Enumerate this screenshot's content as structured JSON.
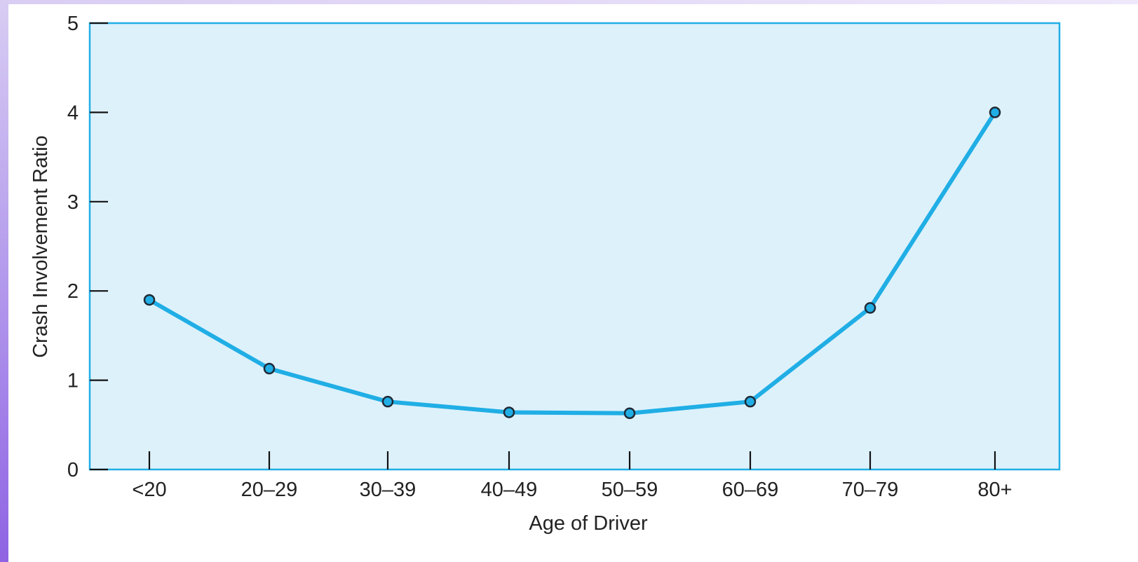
{
  "chart_data": {
    "type": "line",
    "title": "",
    "xlabel": "Age of Driver",
    "ylabel": "Crash Involvement Ratio",
    "categories": [
      "<20",
      "20–29",
      "30–39",
      "40–49",
      "50–59",
      "60–69",
      "70–79",
      "80+"
    ],
    "series": [
      {
        "name": "",
        "values": [
          1.9,
          1.13,
          0.76,
          0.64,
          0.63,
          0.76,
          1.81,
          4.0
        ]
      }
    ],
    "ylim": [
      0,
      5
    ],
    "yticks": [
      0,
      1,
      2,
      3,
      4,
      5
    ],
    "grid": false,
    "legend": "none",
    "colors": {
      "line": "#20aee5",
      "point": "#20aee5",
      "point_outline": "#1f2a36",
      "plot_bg": "#ddf1fb",
      "plot_border": "#20aee5",
      "axis_text": "#222222"
    }
  }
}
